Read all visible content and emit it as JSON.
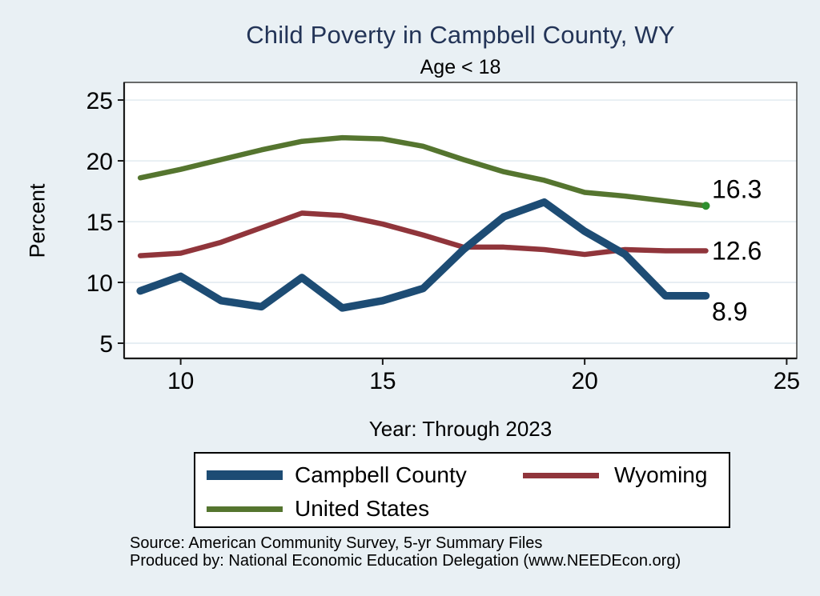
{
  "title": "Child Poverty in Campbell County, WY",
  "subtitle": "Age < 18",
  "y_axis_title": "Percent",
  "x_axis_title": "Year: Through 2023",
  "source": {
    "line1": "Source: American Community Survey, 5-yr Summary Files",
    "line2": "Produced by: National Economic Education Delegation (www.NEEDEcon.org)"
  },
  "colors": {
    "background": "#e9f0f4",
    "plot_background": "#ffffff",
    "gridline": "#dfe9ef",
    "axis": "#1a1a1a",
    "title_text": "#233457",
    "campbell_county": "#1d4c74",
    "wyoming": "#90353b",
    "united_states": "#55752f",
    "us_end_marker": "#2f8f2f"
  },
  "chart_data": {
    "type": "line",
    "title": "Child Poverty in Campbell County, WY",
    "subtitle": "Age < 18",
    "xlabel": "Year: Through 2023",
    "ylabel": "Percent",
    "x": [
      9,
      10,
      11,
      12,
      13,
      14,
      15,
      16,
      17,
      18,
      19,
      20,
      21,
      22,
      23
    ],
    "series": [
      {
        "name": "Campbell County",
        "color": "#1d4c74",
        "width": 9.5,
        "values": [
          9.3,
          10.5,
          8.5,
          8.0,
          10.4,
          7.9,
          8.5,
          9.5,
          12.7,
          15.4,
          16.6,
          14.2,
          12.3,
          8.9,
          8.9
        ],
        "end_label": "8.9"
      },
      {
        "name": "Wyoming",
        "color": "#90353b",
        "width": 6.5,
        "values": [
          12.2,
          12.4,
          13.3,
          14.5,
          15.7,
          15.5,
          14.8,
          13.9,
          12.9,
          12.9,
          12.7,
          12.3,
          12.7,
          12.6,
          12.6
        ],
        "end_label": "12.6"
      },
      {
        "name": "United States",
        "color": "#55752f",
        "width": 6.5,
        "values": [
          18.6,
          19.3,
          20.1,
          20.9,
          21.6,
          21.9,
          21.8,
          21.2,
          20.1,
          19.1,
          18.4,
          17.4,
          17.1,
          16.7,
          16.3
        ],
        "end_label": "16.3",
        "end_marker": true,
        "end_marker_color": "#2f8f2f"
      }
    ],
    "x_ticks": [
      10,
      15,
      20,
      25
    ],
    "y_ticks": [
      5,
      10,
      15,
      20,
      25
    ],
    "xlim": [
      8.6,
      25.25
    ],
    "ylim": [
      3.75,
      26.45
    ],
    "grid": true,
    "legend_position": "bottom"
  }
}
